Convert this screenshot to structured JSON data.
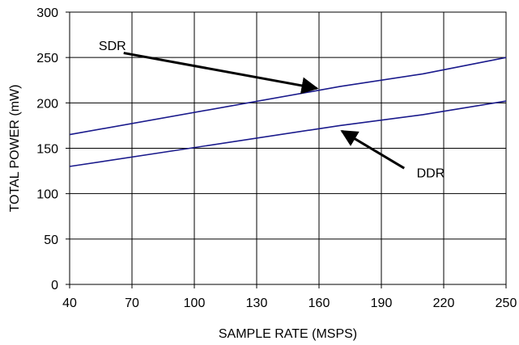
{
  "chart_data": {
    "type": "line",
    "title": "",
    "xlabel": "SAMPLE RATE (MSPS)",
    "ylabel": "TOTAL POWER (mW)",
    "xlim": [
      40,
      250
    ],
    "ylim": [
      0,
      300
    ],
    "xticks": [
      40,
      70,
      100,
      130,
      160,
      190,
      220,
      250
    ],
    "yticks": [
      0,
      50,
      100,
      150,
      200,
      250,
      300
    ],
    "grid": true,
    "legend": "none",
    "series": [
      {
        "name": "SDR",
        "color": "#1a1a8c",
        "x": [
          40,
          170,
          210,
          250
        ],
        "y": [
          165,
          218,
          232,
          250
        ]
      },
      {
        "name": "DDR",
        "color": "#1a1a8c",
        "x": [
          40,
          170,
          210,
          250
        ],
        "y": [
          130,
          175,
          187,
          202
        ]
      }
    ],
    "annotations": [
      {
        "label": "SDR",
        "text_at": [
          54,
          258
        ],
        "arrow_from": [
          66,
          255
        ],
        "arrow_to": [
          159,
          216
        ]
      },
      {
        "label": "DDR",
        "text_at": [
          207,
          118
        ],
        "arrow_from": [
          201,
          128
        ],
        "arrow_to": [
          171,
          169
        ]
      }
    ]
  }
}
